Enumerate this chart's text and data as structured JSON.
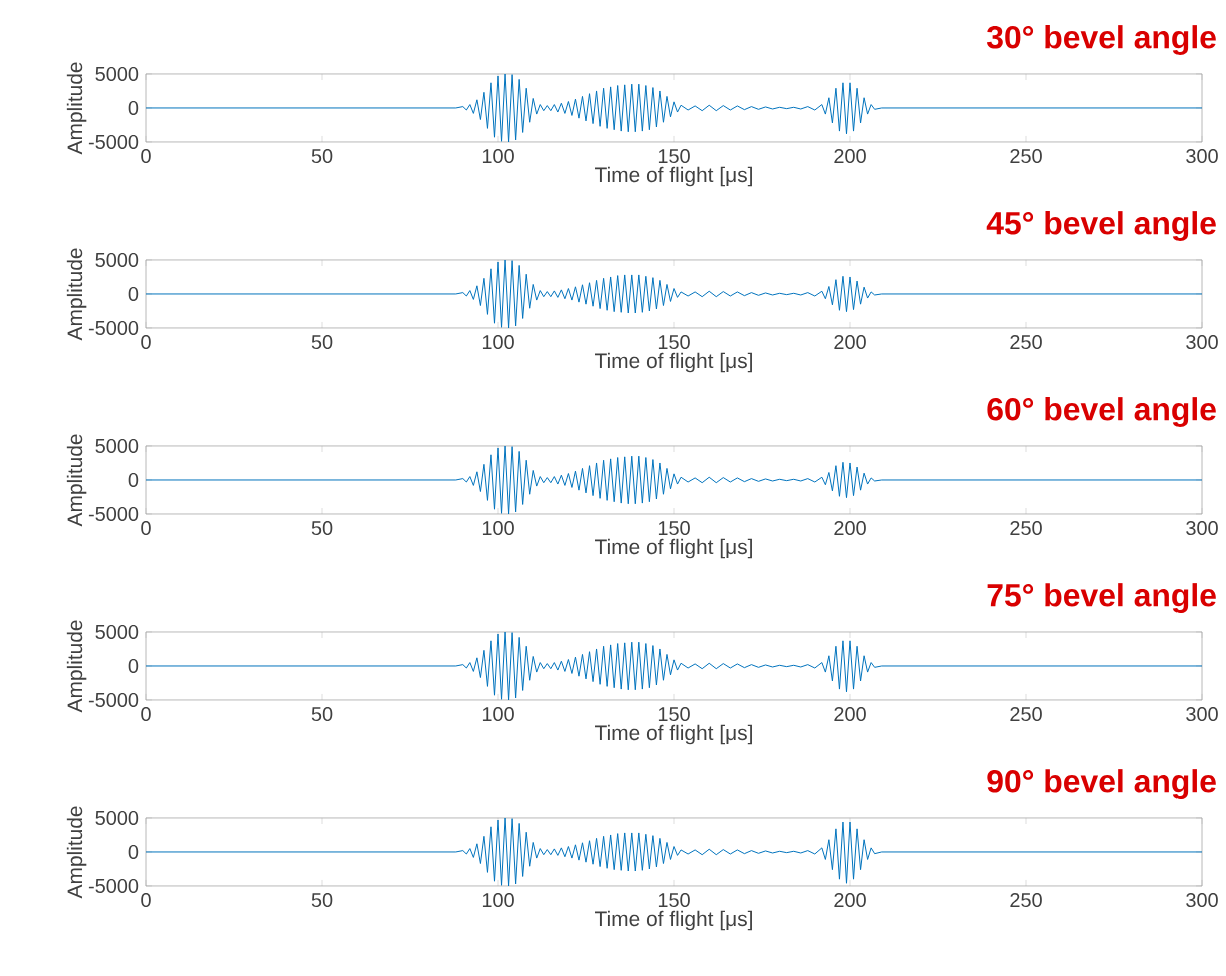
{
  "chart_data": [
    {
      "type": "line",
      "title": "30° bevel angle",
      "xlabel": "Time of flight [μs]",
      "ylabel": "Amplitude",
      "xlim": [
        0,
        300
      ],
      "xticks": [
        0,
        50,
        100,
        150,
        200,
        250,
        300
      ],
      "ylim": [
        -5000,
        5000
      ],
      "yticks": [
        -5000,
        0,
        5000
      ],
      "x": [
        0,
        88,
        90,
        91,
        92,
        93,
        94,
        95,
        96,
        97,
        98,
        99,
        100,
        101,
        102,
        103,
        104,
        105,
        106,
        107,
        108,
        109,
        110,
        111,
        112,
        113,
        114,
        115,
        116,
        117,
        118,
        119,
        120,
        121,
        122,
        123,
        124,
        125,
        126,
        127,
        128,
        129,
        130,
        131,
        132,
        133,
        134,
        135,
        136,
        137,
        138,
        139,
        140,
        141,
        142,
        143,
        144,
        145,
        146,
        147,
        148,
        149,
        150,
        151,
        152,
        154,
        156,
        158,
        160,
        162,
        164,
        166,
        168,
        170,
        172,
        174,
        176,
        178,
        180,
        182,
        184,
        186,
        188,
        190,
        192,
        193,
        194,
        195,
        196,
        197,
        198,
        199,
        200,
        201,
        202,
        203,
        204,
        205,
        206,
        207,
        209,
        300
      ],
      "series": [
        {
          "color": "#0072bd",
          "values": [
            0,
            0,
            200,
            -300,
            500,
            -800,
            1200,
            -1700,
            2300,
            -3000,
            3700,
            -4300,
            4700,
            -4900,
            5000,
            -5000,
            4900,
            -4700,
            4200,
            -3600,
            2900,
            -2100,
            1400,
            -900,
            500,
            -400,
            350,
            -400,
            500,
            -600,
            700,
            -800,
            950,
            -1100,
            1300,
            -1500,
            1700,
            -1900,
            2100,
            -2300,
            2500,
            -2700,
            2900,
            -3000,
            3100,
            -3200,
            3300,
            -3400,
            3400,
            -3500,
            3500,
            -3500,
            3500,
            -3400,
            3300,
            -3200,
            3000,
            -2800,
            2500,
            -2100,
            1700,
            -1300,
            900,
            -600,
            400,
            -300,
            300,
            -400,
            400,
            -400,
            350,
            -300,
            300,
            -250,
            200,
            -200,
            150,
            -150,
            100,
            -100,
            100,
            -150,
            200,
            -300,
            500,
            -900,
            1500,
            -2200,
            2900,
            -3400,
            3700,
            -3800,
            3700,
            -3400,
            2900,
            -2200,
            1500,
            -900,
            500,
            -200,
            0,
            0
          ]
        }
      ]
    },
    {
      "type": "line",
      "title": "45° bevel angle",
      "xlabel": "Time of flight [μs]",
      "ylabel": "Amplitude",
      "xlim": [
        0,
        300
      ],
      "xticks": [
        0,
        50,
        100,
        150,
        200,
        250,
        300
      ],
      "ylim": [
        -5000,
        5000
      ],
      "yticks": [
        -5000,
        0,
        5000
      ],
      "x": [
        0,
        88,
        90,
        91,
        92,
        93,
        94,
        95,
        96,
        97,
        98,
        99,
        100,
        101,
        102,
        103,
        104,
        105,
        106,
        107,
        108,
        109,
        110,
        111,
        112,
        113,
        114,
        115,
        116,
        117,
        118,
        119,
        120,
        121,
        122,
        123,
        124,
        125,
        126,
        127,
        128,
        129,
        130,
        131,
        132,
        133,
        134,
        135,
        136,
        137,
        138,
        139,
        140,
        141,
        142,
        143,
        144,
        145,
        146,
        147,
        148,
        149,
        150,
        151,
        152,
        154,
        156,
        158,
        160,
        162,
        164,
        166,
        168,
        170,
        172,
        174,
        176,
        178,
        180,
        182,
        184,
        186,
        188,
        190,
        192,
        193,
        194,
        195,
        196,
        197,
        198,
        199,
        200,
        201,
        202,
        203,
        204,
        205,
        206,
        207,
        209,
        300
      ],
      "series": [
        {
          "color": "#0072bd",
          "values": [
            0,
            0,
            200,
            -300,
            500,
            -800,
            1200,
            -1700,
            2300,
            -3000,
            3700,
            -4300,
            4700,
            -4900,
            5000,
            -5000,
            4900,
            -4700,
            4200,
            -3600,
            2900,
            -2100,
            1400,
            -900,
            500,
            -400,
            350,
            -400,
            450,
            -500,
            600,
            -700,
            800,
            -900,
            1050,
            -1200,
            1350,
            -1500,
            1650,
            -1800,
            2000,
            -2150,
            2300,
            -2400,
            2500,
            -2600,
            2700,
            -2700,
            2800,
            -2800,
            2800,
            -2800,
            2800,
            -2700,
            2600,
            -2500,
            2400,
            -2200,
            2000,
            -1700,
            1400,
            -1100,
            800,
            -500,
            300,
            -300,
            300,
            -400,
            400,
            -400,
            350,
            -300,
            300,
            -250,
            200,
            -200,
            150,
            -150,
            100,
            -100,
            100,
            -150,
            200,
            -300,
            400,
            -700,
            1100,
            -1600,
            2100,
            -2400,
            2600,
            -2600,
            2500,
            -2300,
            1900,
            -1500,
            1000,
            -600,
            300,
            -150,
            0,
            0
          ]
        }
      ]
    },
    {
      "type": "line",
      "title": "60° bevel angle",
      "xlabel": "Time of flight [μs]",
      "ylabel": "Amplitude",
      "xlim": [
        0,
        300
      ],
      "xticks": [
        0,
        50,
        100,
        150,
        200,
        250,
        300
      ],
      "ylim": [
        -5000,
        5000
      ],
      "yticks": [
        -5000,
        0,
        5000
      ],
      "x": [
        0,
        88,
        90,
        91,
        92,
        93,
        94,
        95,
        96,
        97,
        98,
        99,
        100,
        101,
        102,
        103,
        104,
        105,
        106,
        107,
        108,
        109,
        110,
        111,
        112,
        113,
        114,
        115,
        116,
        117,
        118,
        119,
        120,
        121,
        122,
        123,
        124,
        125,
        126,
        127,
        128,
        129,
        130,
        131,
        132,
        133,
        134,
        135,
        136,
        137,
        138,
        139,
        140,
        141,
        142,
        143,
        144,
        145,
        146,
        147,
        148,
        149,
        150,
        151,
        152,
        154,
        156,
        158,
        160,
        162,
        164,
        166,
        168,
        170,
        172,
        174,
        176,
        178,
        180,
        182,
        184,
        186,
        188,
        190,
        192,
        193,
        194,
        195,
        196,
        197,
        198,
        199,
        200,
        201,
        202,
        203,
        204,
        205,
        206,
        207,
        209,
        300
      ],
      "series": [
        {
          "color": "#0072bd",
          "values": [
            0,
            0,
            200,
            -300,
            500,
            -800,
            1200,
            -1700,
            2300,
            -3000,
            3700,
            -4300,
            4700,
            -4900,
            5000,
            -5000,
            4900,
            -4700,
            4200,
            -3600,
            2900,
            -2100,
            1400,
            -900,
            500,
            -400,
            350,
            -400,
            500,
            -600,
            700,
            -800,
            950,
            -1100,
            1300,
            -1500,
            1700,
            -1900,
            2100,
            -2300,
            2500,
            -2700,
            2900,
            -3000,
            3100,
            -3200,
            3300,
            -3400,
            3400,
            -3500,
            3500,
            -3500,
            3500,
            -3400,
            3300,
            -3200,
            3000,
            -2800,
            2500,
            -2100,
            1700,
            -1300,
            900,
            -600,
            400,
            -300,
            300,
            -400,
            400,
            -400,
            350,
            -300,
            300,
            -250,
            200,
            -200,
            150,
            -150,
            100,
            -100,
            100,
            -150,
            200,
            -300,
            400,
            -700,
            1100,
            -1600,
            2100,
            -2400,
            2600,
            -2600,
            2500,
            -2300,
            1900,
            -1500,
            1000,
            -600,
            300,
            -150,
            0,
            0
          ]
        }
      ]
    },
    {
      "type": "line",
      "title": "75° bevel angle",
      "xlabel": "Time of flight [μs]",
      "ylabel": "Amplitude",
      "xlim": [
        0,
        300
      ],
      "xticks": [
        0,
        50,
        100,
        150,
        200,
        250,
        300
      ],
      "ylim": [
        -5000,
        5000
      ],
      "yticks": [
        -5000,
        0,
        5000
      ],
      "x": [
        0,
        88,
        90,
        91,
        92,
        93,
        94,
        95,
        96,
        97,
        98,
        99,
        100,
        101,
        102,
        103,
        104,
        105,
        106,
        107,
        108,
        109,
        110,
        111,
        112,
        113,
        114,
        115,
        116,
        117,
        118,
        119,
        120,
        121,
        122,
        123,
        124,
        125,
        126,
        127,
        128,
        129,
        130,
        131,
        132,
        133,
        134,
        135,
        136,
        137,
        138,
        139,
        140,
        141,
        142,
        143,
        144,
        145,
        146,
        147,
        148,
        149,
        150,
        151,
        152,
        154,
        156,
        158,
        160,
        162,
        164,
        166,
        168,
        170,
        172,
        174,
        176,
        178,
        180,
        182,
        184,
        186,
        188,
        190,
        192,
        193,
        194,
        195,
        196,
        197,
        198,
        199,
        200,
        201,
        202,
        203,
        204,
        205,
        206,
        207,
        209,
        300
      ],
      "series": [
        {
          "color": "#0072bd",
          "values": [
            0,
            0,
            200,
            -300,
            500,
            -800,
            1200,
            -1700,
            2300,
            -3000,
            3700,
            -4300,
            4700,
            -4900,
            5000,
            -5000,
            4900,
            -4700,
            4200,
            -3600,
            2900,
            -2100,
            1400,
            -900,
            500,
            -400,
            350,
            -400,
            500,
            -600,
            700,
            -800,
            950,
            -1100,
            1300,
            -1500,
            1700,
            -1900,
            2100,
            -2300,
            2500,
            -2700,
            2900,
            -3000,
            3100,
            -3200,
            3300,
            -3400,
            3400,
            -3500,
            3500,
            -3500,
            3500,
            -3400,
            3300,
            -3200,
            3000,
            -2800,
            2500,
            -2100,
            1700,
            -1300,
            900,
            -600,
            400,
            -300,
            300,
            -400,
            400,
            -400,
            350,
            -300,
            300,
            -250,
            200,
            -200,
            150,
            -150,
            100,
            -100,
            100,
            -150,
            200,
            -300,
            500,
            -900,
            1500,
            -2200,
            2900,
            -3400,
            3700,
            -3800,
            3700,
            -3400,
            2900,
            -2200,
            1500,
            -900,
            500,
            -200,
            0,
            0
          ]
        }
      ]
    },
    {
      "type": "line",
      "title": "90° bevel angle",
      "xlabel": "Time of flight [μs]",
      "ylabel": "Amplitude",
      "xlim": [
        0,
        300
      ],
      "xticks": [
        0,
        50,
        100,
        150,
        200,
        250,
        300
      ],
      "ylim": [
        -5000,
        5000
      ],
      "yticks": [
        -5000,
        0,
        5000
      ],
      "x": [
        0,
        88,
        90,
        91,
        92,
        93,
        94,
        95,
        96,
        97,
        98,
        99,
        100,
        101,
        102,
        103,
        104,
        105,
        106,
        107,
        108,
        109,
        110,
        111,
        112,
        113,
        114,
        115,
        116,
        117,
        118,
        119,
        120,
        121,
        122,
        123,
        124,
        125,
        126,
        127,
        128,
        129,
        130,
        131,
        132,
        133,
        134,
        135,
        136,
        137,
        138,
        139,
        140,
        141,
        142,
        143,
        144,
        145,
        146,
        147,
        148,
        149,
        150,
        151,
        152,
        154,
        156,
        158,
        160,
        162,
        164,
        166,
        168,
        170,
        172,
        174,
        176,
        178,
        180,
        182,
        184,
        186,
        188,
        190,
        192,
        193,
        194,
        195,
        196,
        197,
        198,
        199,
        200,
        201,
        202,
        203,
        204,
        205,
        206,
        207,
        209,
        300
      ],
      "series": [
        {
          "color": "#0072bd",
          "values": [
            0,
            0,
            200,
            -300,
            500,
            -800,
            1200,
            -1700,
            2300,
            -3000,
            3700,
            -4300,
            4700,
            -4900,
            5000,
            -5000,
            4900,
            -4700,
            4200,
            -3600,
            2900,
            -2100,
            1400,
            -900,
            500,
            -400,
            350,
            -400,
            450,
            -500,
            600,
            -700,
            800,
            -900,
            1050,
            -1200,
            1350,
            -1500,
            1650,
            -1800,
            2000,
            -2150,
            2300,
            -2400,
            2500,
            -2600,
            2700,
            -2700,
            2800,
            -2800,
            2800,
            -2800,
            2800,
            -2700,
            2600,
            -2500,
            2400,
            -2200,
            2000,
            -1700,
            1400,
            -1100,
            800,
            -500,
            300,
            -300,
            300,
            -400,
            400,
            -400,
            350,
            -300,
            300,
            -250,
            200,
            -200,
            150,
            -150,
            100,
            -100,
            100,
            -150,
            200,
            -300,
            600,
            -1100,
            1800,
            -2600,
            3400,
            -4000,
            4400,
            -4600,
            4400,
            -4000,
            3400,
            -2600,
            1800,
            -1100,
            600,
            -250,
            0,
            0
          ]
        }
      ]
    }
  ]
}
